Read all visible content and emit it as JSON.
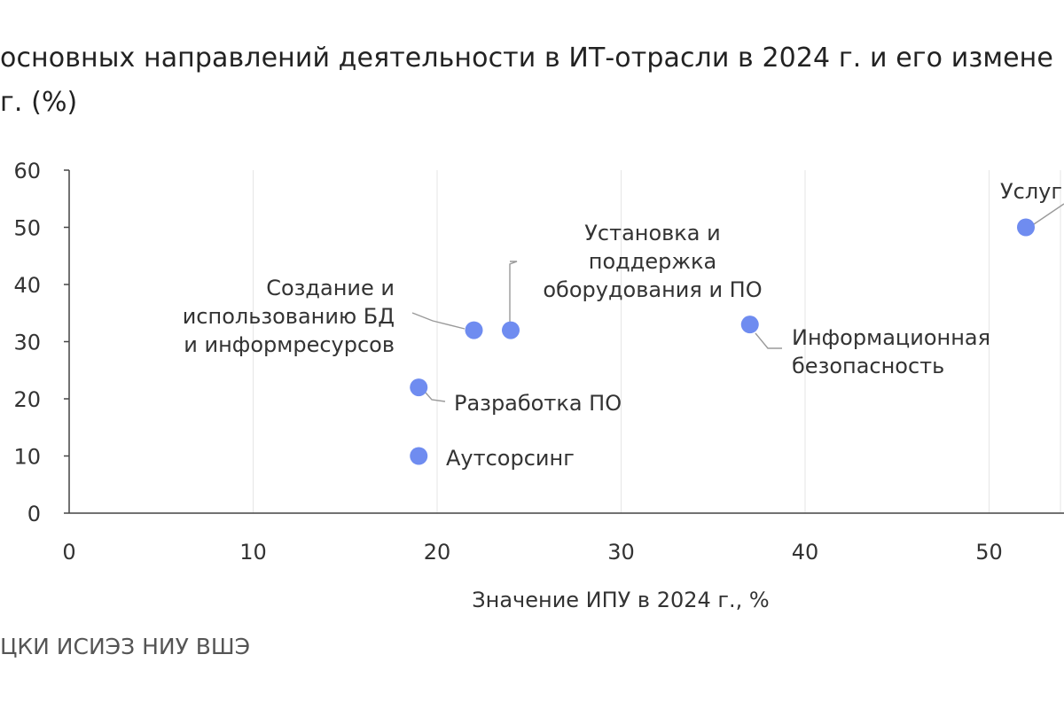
{
  "title": {
    "line1": "основных направлений деятельности в ИТ-отрасли в 2024 г. и его измене",
    "line2": "г. (%)"
  },
  "source": "ЦКИ ИСИЭЗ НИУ ВШЭ",
  "chart_data": {
    "type": "scatter",
    "xlabel": "Значение ИПУ в 2024 г., %",
    "ylabel": "",
    "xlim": [
      0,
      55
    ],
    "ylim": [
      0,
      60
    ],
    "x_ticks": [
      0,
      10,
      20,
      30,
      40,
      50
    ],
    "y_ticks": [
      0,
      10,
      20,
      30,
      40,
      50,
      60
    ],
    "grid": "vertical",
    "point_color": "#6f8cf0",
    "points": [
      {
        "x": 19,
        "y": 10,
        "label": "Аутсорсинг",
        "label_lines": [
          "Аутсорсинг"
        ]
      },
      {
        "x": 19,
        "y": 22,
        "label": "Разработка ПО",
        "label_lines": [
          "Разработка ПО"
        ]
      },
      {
        "x": 22,
        "y": 32,
        "label": "Создание и использованию БД и информресурсов",
        "label_lines": [
          "Создание и",
          "использованию БД",
          "и информресурсов"
        ]
      },
      {
        "x": 24,
        "y": 32,
        "label": "Установка и поддержка оборудования и ПО",
        "label_lines": [
          "Установка и",
          "поддержка",
          "оборудования и ПО"
        ]
      },
      {
        "x": 37,
        "y": 33,
        "label": "Информационная безопасность",
        "label_lines": [
          "Информационная",
          "безопасность"
        ]
      },
      {
        "x": 52,
        "y": 50,
        "label": "Услуг",
        "label_lines": [
          "Услуг"
        ]
      }
    ]
  }
}
